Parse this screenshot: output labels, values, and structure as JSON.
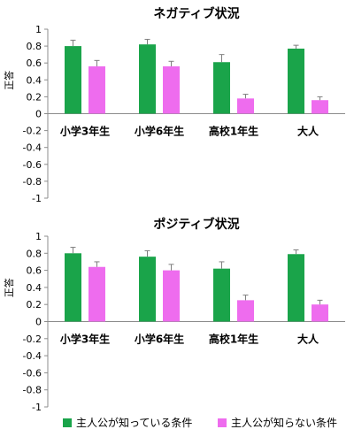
{
  "colors": {
    "known": "#1aa44a",
    "unknown": "#ee6cee",
    "error": "#7f7f7f",
    "axis": "#8c8c8c"
  },
  "legend": {
    "known_label": "主人公が知っている条件",
    "unknown_label": "主人公が知らない条件",
    "placement": "bottom"
  },
  "chart_data": [
    {
      "type": "bar",
      "title": "ネガティブ状況",
      "ylabel": "正答",
      "ylim": [
        -1,
        1
      ],
      "yticks": [
        1,
        0.8,
        0.6,
        0.4,
        0.2,
        0,
        -0.2,
        -0.4,
        -0.6,
        -0.8,
        -1
      ],
      "ytick_labels": [
        "1",
        "0.8",
        "0.6",
        "0.4",
        "0.2",
        "0",
        "-0.2",
        "-0.4",
        "-0.6",
        "-0.8",
        "-1"
      ],
      "grid": false,
      "categories": [
        "小学3年生",
        "小学6年生",
        "高校1年生",
        "大人"
      ],
      "series": [
        {
          "name": "主人公が知っている条件",
          "values": [
            0.8,
            0.82,
            0.61,
            0.77
          ],
          "errors": [
            0.07,
            0.06,
            0.09,
            0.04
          ]
        },
        {
          "name": "主人公が知らない条件",
          "values": [
            0.56,
            0.56,
            0.18,
            0.16
          ],
          "errors": [
            0.07,
            0.06,
            0.05,
            0.04
          ]
        }
      ]
    },
    {
      "type": "bar",
      "title": "ポジティブ状況",
      "ylabel": "正答",
      "ylim": [
        -1,
        1
      ],
      "yticks": [
        1,
        0.8,
        0.6,
        0.4,
        0.2,
        0,
        -0.2,
        -0.4,
        -0.6,
        -0.8,
        -1
      ],
      "ytick_labels": [
        "1",
        "0.8",
        "0.6",
        "0.4",
        "0.2",
        "0",
        "-0.2",
        "-0.4",
        "-0.6",
        "-0.8",
        "-1"
      ],
      "grid": false,
      "categories": [
        "小学3年生",
        "小学6年生",
        "高校1年生",
        "大人"
      ],
      "series": [
        {
          "name": "主人公が知っている条件",
          "values": [
            0.8,
            0.76,
            0.62,
            0.79
          ],
          "errors": [
            0.07,
            0.07,
            0.08,
            0.05
          ]
        },
        {
          "name": "主人公が知らない条件",
          "values": [
            0.64,
            0.6,
            0.25,
            0.2
          ],
          "errors": [
            0.06,
            0.07,
            0.06,
            0.05
          ]
        }
      ]
    }
  ]
}
